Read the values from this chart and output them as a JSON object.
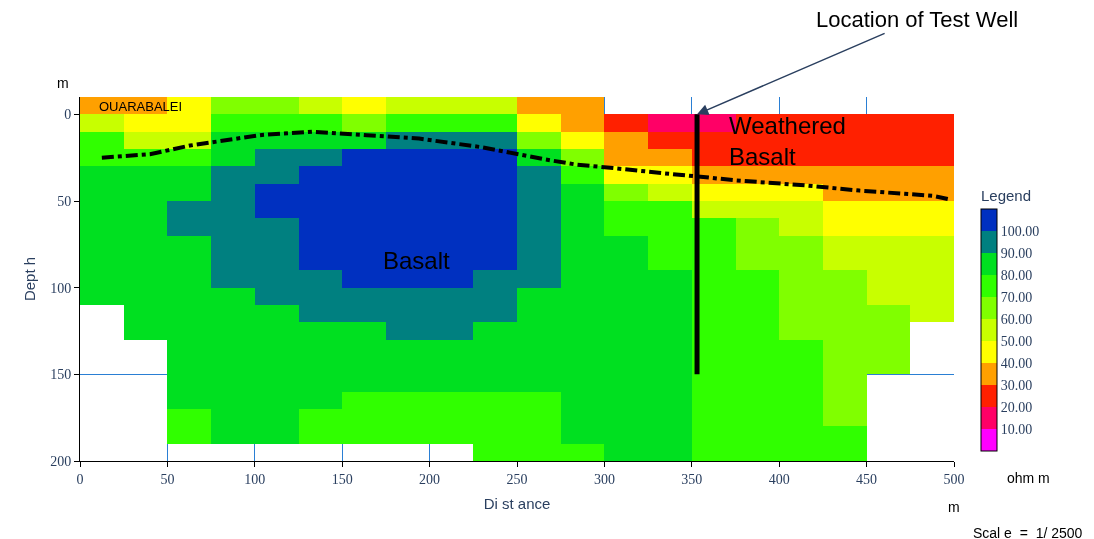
{
  "chart_data": {
    "type": "heatmap",
    "xlabel": "Di st ance",
    "ylabel": "Dept h",
    "clabel": "Legend",
    "xlim": [
      0,
      500
    ],
    "xticks": [
      0,
      50,
      100,
      150,
      200,
      250,
      300,
      350,
      400,
      450,
      500
    ],
    "ylim": [
      200,
      -10
    ],
    "yticks": [
      0,
      50,
      100,
      150,
      200
    ],
    "clim": [
      0,
      110
    ],
    "cticks": [
      {
        "value": 10,
        "label": "10.00"
      },
      {
        "value": 20,
        "label": "20.00"
      },
      {
        "value": 30,
        "label": "30.00"
      },
      {
        "value": 40,
        "label": "40.00"
      },
      {
        "value": 50,
        "label": "50.00"
      },
      {
        "value": 60,
        "label": "60.00"
      },
      {
        "value": 70,
        "label": "70.00"
      },
      {
        "value": 80,
        "label": "80.00"
      },
      {
        "value": 90,
        "label": "90.00"
      },
      {
        "value": 100,
        "label": "100.00"
      }
    ],
    "colors": [
      "#ff00ff",
      "#ff0066",
      "#ff2000",
      "#ffa000",
      "#ffff00",
      "#c8ff00",
      "#80ff00",
      "#30ff00",
      "#00e020",
      "#008080",
      "#0030c0"
    ],
    "grid": true,
    "x": [
      12.5,
      37.5,
      62.5,
      87.5,
      112.5,
      137.5,
      162.5,
      187.5,
      212.5,
      237.5,
      262.5,
      287.5,
      312.5,
      337.5,
      362.5,
      387.5,
      412.5,
      437.5,
      462.5,
      487.5
    ],
    "y": [
      -5,
      5,
      15,
      25,
      35,
      45,
      55,
      65,
      75,
      85,
      95,
      105,
      115,
      125,
      135,
      145,
      155,
      165,
      175,
      185,
      195
    ],
    "cells": [
      [
        35,
        35,
        45,
        65,
        65,
        55,
        45,
        55,
        55,
        55,
        35,
        35,
        null,
        null,
        null,
        null,
        null,
        null,
        null,
        null
      ],
      [
        55,
        45,
        45,
        75,
        75,
        75,
        65,
        75,
        75,
        75,
        45,
        35,
        25,
        15,
        15,
        25,
        25,
        25,
        25,
        25
      ],
      [
        75,
        55,
        55,
        85,
        85,
        85,
        85,
        95,
        95,
        95,
        65,
        45,
        35,
        25,
        25,
        25,
        25,
        25,
        25,
        25
      ],
      [
        75,
        75,
        75,
        85,
        95,
        95,
        105,
        105,
        105,
        105,
        85,
        65,
        35,
        35,
        25,
        25,
        25,
        25,
        25,
        25
      ],
      [
        85,
        85,
        85,
        95,
        95,
        105,
        105,
        105,
        105,
        105,
        95,
        75,
        45,
        45,
        35,
        35,
        35,
        35,
        35,
        35
      ],
      [
        85,
        85,
        85,
        95,
        105,
        105,
        105,
        105,
        105,
        105,
        95,
        85,
        65,
        55,
        45,
        45,
        45,
        35,
        35,
        35
      ],
      [
        85,
        85,
        95,
        95,
        105,
        105,
        105,
        105,
        105,
        105,
        95,
        85,
        75,
        75,
        55,
        55,
        55,
        45,
        45,
        45
      ],
      [
        85,
        85,
        95,
        95,
        95,
        105,
        105,
        105,
        105,
        105,
        95,
        85,
        75,
        75,
        75,
        65,
        55,
        45,
        45,
        45
      ],
      [
        85,
        85,
        85,
        95,
        95,
        105,
        105,
        105,
        105,
        105,
        95,
        85,
        85,
        75,
        75,
        65,
        65,
        55,
        55,
        55
      ],
      [
        85,
        85,
        85,
        95,
        95,
        105,
        105,
        105,
        105,
        105,
        95,
        85,
        85,
        75,
        75,
        65,
        65,
        55,
        55,
        55
      ],
      [
        85,
        85,
        85,
        95,
        95,
        95,
        105,
        105,
        105,
        95,
        95,
        85,
        85,
        85,
        75,
        75,
        65,
        65,
        55,
        55
      ],
      [
        85,
        85,
        85,
        85,
        95,
        95,
        95,
        95,
        95,
        95,
        85,
        85,
        85,
        85,
        75,
        75,
        65,
        65,
        55,
        55
      ],
      [
        null,
        85,
        85,
        85,
        85,
        95,
        95,
        95,
        95,
        95,
        85,
        85,
        85,
        85,
        75,
        75,
        65,
        65,
        65,
        55
      ],
      [
        null,
        85,
        85,
        85,
        85,
        85,
        85,
        95,
        95,
        85,
        85,
        85,
        85,
        85,
        75,
        75,
        65,
        65,
        65,
        null
      ],
      [
        null,
        null,
        85,
        85,
        85,
        85,
        85,
        85,
        85,
        85,
        85,
        85,
        85,
        85,
        75,
        75,
        75,
        65,
        65,
        null
      ],
      [
        null,
        null,
        85,
        85,
        85,
        85,
        85,
        85,
        85,
        85,
        85,
        85,
        85,
        85,
        75,
        75,
        75,
        65,
        65,
        null
      ],
      [
        null,
        null,
        85,
        85,
        85,
        85,
        85,
        85,
        85,
        85,
        85,
        85,
        85,
        85,
        75,
        75,
        75,
        65,
        null,
        null
      ],
      [
        null,
        null,
        85,
        85,
        85,
        85,
        75,
        75,
        75,
        75,
        75,
        85,
        85,
        85,
        75,
        75,
        75,
        65,
        null,
        null
      ],
      [
        null,
        null,
        75,
        85,
        85,
        75,
        75,
        75,
        75,
        75,
        75,
        85,
        85,
        85,
        75,
        75,
        75,
        65,
        null,
        null
      ],
      [
        null,
        null,
        75,
        85,
        85,
        75,
        75,
        75,
        75,
        75,
        75,
        85,
        85,
        85,
        75,
        75,
        75,
        75,
        null,
        null
      ],
      [
        null,
        null,
        null,
        null,
        null,
        null,
        null,
        null,
        null,
        75,
        75,
        75,
        85,
        85,
        75,
        75,
        75,
        75,
        null,
        null
      ]
    ],
    "series": [
      {
        "type": "line",
        "color": "#000000",
        "line_style": "dashed",
        "x": [
          12.5,
          40,
          63,
          103,
          133,
          164,
          194,
          230,
          266,
          284,
          305,
          334,
          355,
          374,
          415,
          446,
          488,
          497
        ],
        "values": [
          25,
          23,
          18,
          12,
          10,
          12,
          14,
          19,
          26,
          29,
          31,
          34,
          36,
          38,
          41,
          44,
          47,
          49
        ]
      },
      {
        "type": "line",
        "color": "#000000",
        "line_style": "solid",
        "x": [
          353,
          353
        ],
        "values": [
          0,
          150
        ]
      }
    ],
    "annotations": [
      {
        "text": "Location of Test Well",
        "x": 353,
        "y": 0
      },
      "Weathered\nBasalt",
      "Basalt",
      "OUARABALEI",
      "m",
      "m",
      "ohm m",
      "Scal e  =  1/ 2500"
    ]
  }
}
